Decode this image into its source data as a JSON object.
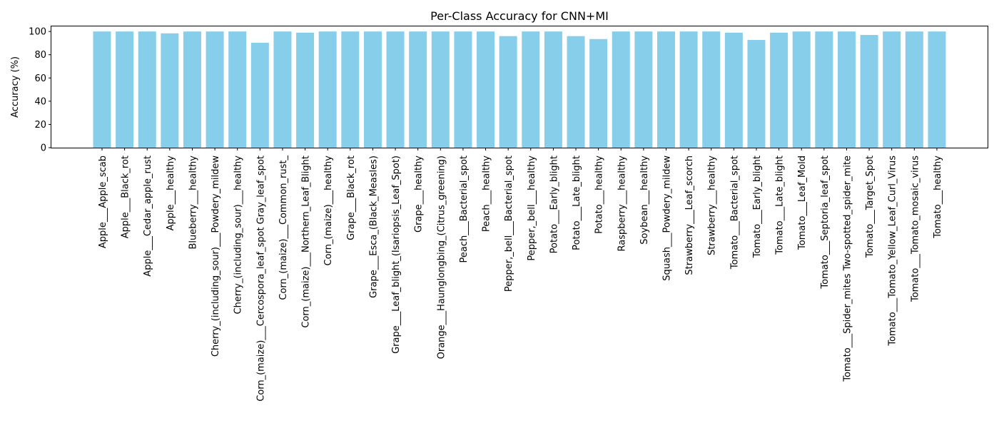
{
  "chart_data": {
    "type": "bar",
    "title": "Per-Class Accuracy for CNN+MI",
    "xlabel": "",
    "ylabel": "Accuracy (%)",
    "ylim": [
      0,
      105
    ],
    "yticks": [
      0,
      20,
      40,
      60,
      80,
      100
    ],
    "grid": false,
    "bar_color": "#87CEEB",
    "categories": [
      "Apple___Apple_scab",
      "Apple___Black_rot",
      "Apple___Cedar_apple_rust",
      "Apple___healthy",
      "Blueberry___healthy",
      "Cherry_(including_sour)___Powdery_mildew",
      "Cherry_(including_sour)___healthy",
      "Corn_(maize)___Cercospora_leaf_spot Gray_leaf_spot",
      "Corn_(maize)___Common_rust_",
      "Corn_(maize)___Northern_Leaf_Blight",
      "Corn_(maize)___healthy",
      "Grape___Black_rot",
      "Grape___Esca_(Black_Measles)",
      "Grape___Leaf_blight_(Isariopsis_Leaf_Spot)",
      "Grape___healthy",
      "Orange___Haunglongbing_(Citrus_greening)",
      "Peach___Bacterial_spot",
      "Peach___healthy",
      "Pepper,_bell___Bacterial_spot",
      "Pepper,_bell___healthy",
      "Potato___Early_blight",
      "Potato___Late_blight",
      "Potato___healthy",
      "Raspberry___healthy",
      "Soybean___healthy",
      "Squash___Powdery_mildew",
      "Strawberry___Leaf_scorch",
      "Strawberry___healthy",
      "Tomato___Bacterial_spot",
      "Tomato___Early_blight",
      "Tomato___Late_blight",
      "Tomato___Leaf_Mold",
      "Tomato___Septoria_leaf_spot",
      "Tomato___Spider_mites Two-spotted_spider_mite",
      "Tomato___Target_Spot",
      "Tomato___Tomato_Yellow_Leaf_Curl_Virus",
      "Tomato___Tomato_mosaic_virus",
      "Tomato___healthy"
    ],
    "values": [
      100,
      100,
      100,
      98.4,
      100,
      100,
      100,
      90.3,
      100,
      99,
      100,
      100,
      100,
      100,
      100,
      100,
      100,
      100,
      96,
      100,
      100,
      96,
      93.5,
      100,
      100,
      100,
      100,
      100,
      99,
      92.7,
      99,
      100,
      100,
      100,
      97,
      100,
      100,
      100
    ]
  }
}
